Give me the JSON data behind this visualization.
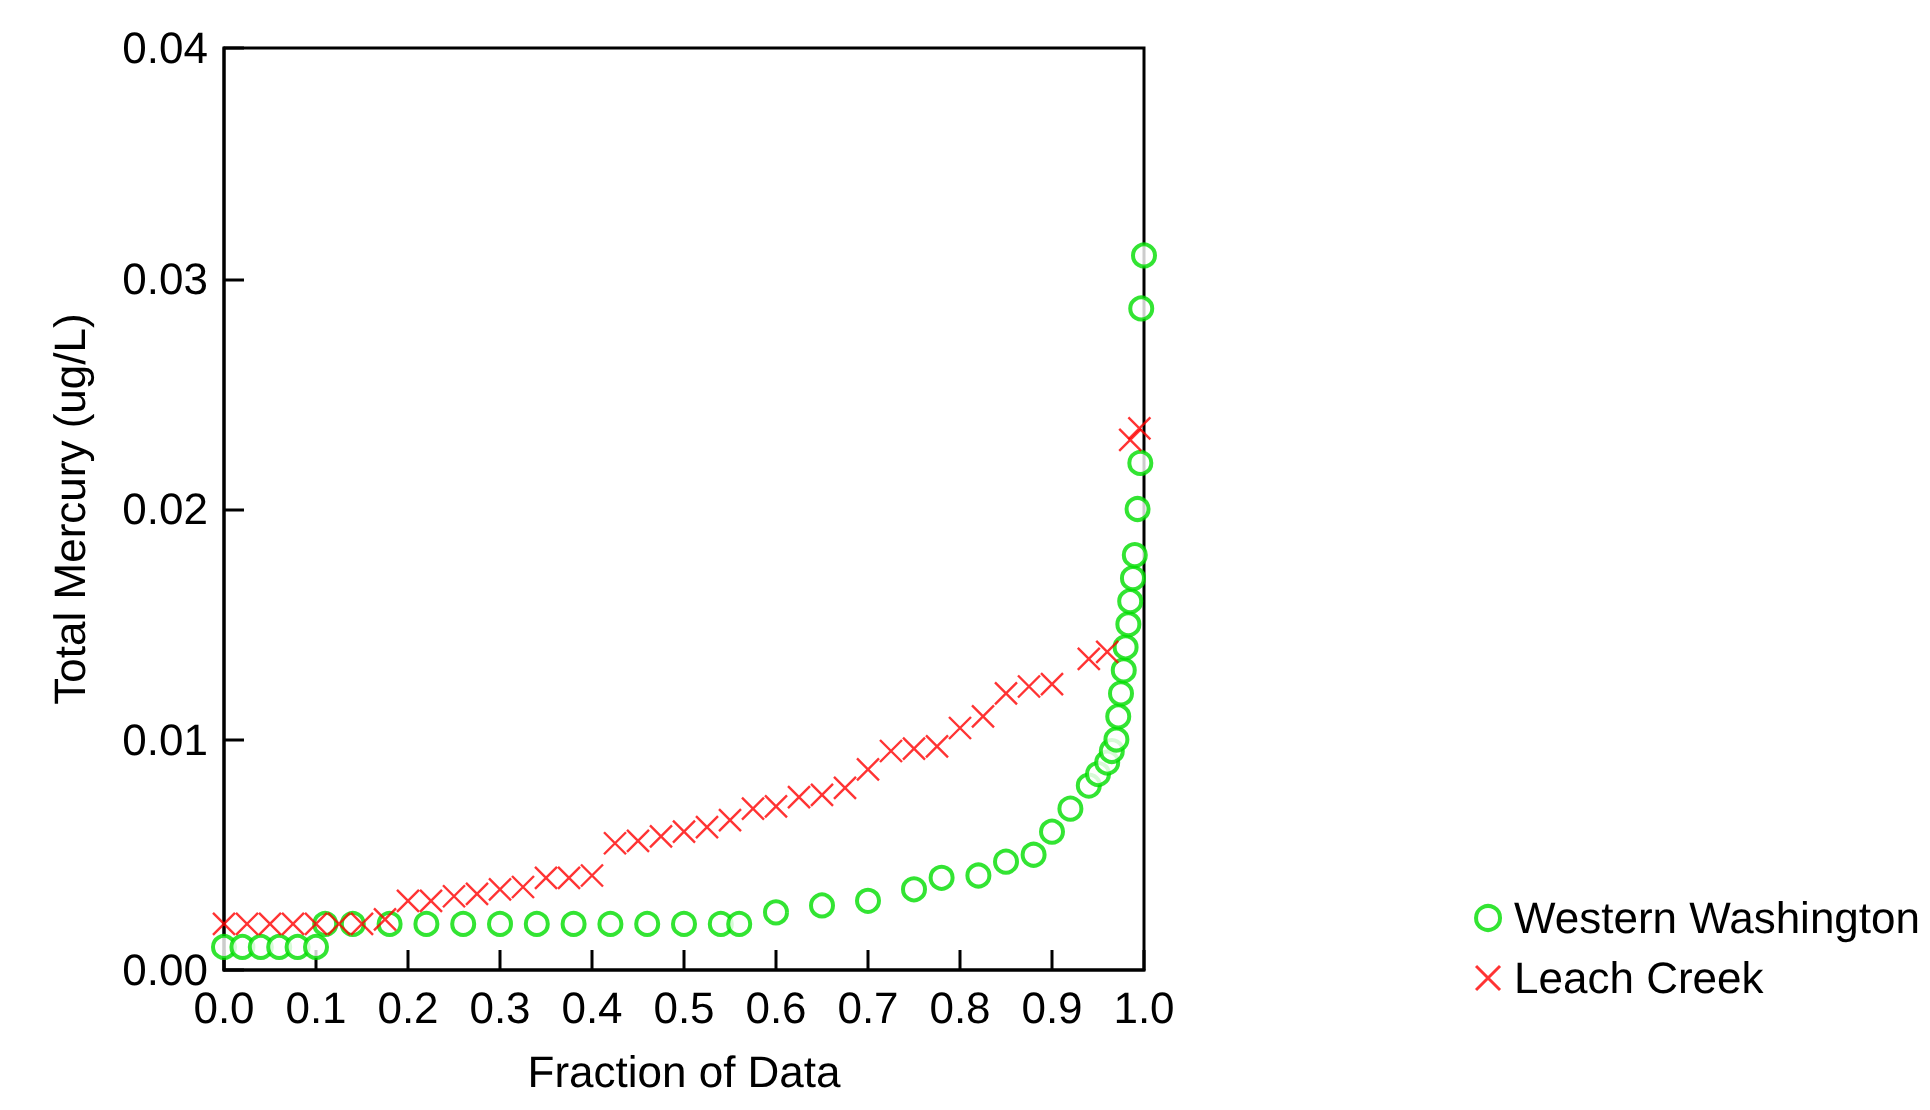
{
  "chart_data": {
    "type": "scatter",
    "xlabel": "Fraction of Data",
    "ylabel": "Total Mercury (ug/L)",
    "xlim": [
      0,
      1
    ],
    "xticks": [
      {
        "value": 0,
        "label": "0.0"
      },
      {
        "value": 0.1,
        "label": "0.1"
      },
      {
        "value": 0.2,
        "label": "0.2"
      },
      {
        "value": 0.3,
        "label": "0.3"
      },
      {
        "value": 0.4,
        "label": "0.4"
      },
      {
        "value": 0.5,
        "label": "0.5"
      },
      {
        "value": 0.6,
        "label": "0.6"
      },
      {
        "value": 0.7,
        "label": "0.7"
      },
      {
        "value": 0.8,
        "label": "0.8"
      },
      {
        "value": 0.9,
        "label": "0.9"
      },
      {
        "value": 1,
        "label": "1.0"
      }
    ],
    "ylim": [
      0,
      0.04
    ],
    "yticks": [
      {
        "value": 0,
        "label": "0.00"
      },
      {
        "value": 0.01,
        "label": "0.01"
      },
      {
        "value": 0.02,
        "label": "0.02"
      },
      {
        "value": 0.03,
        "label": "0.03"
      },
      {
        "value": 0.04,
        "label": "0.04"
      }
    ],
    "grid": false,
    "legend": "bottom right",
    "series": [
      {
        "name": "Western Washington",
        "color": "#00dd00",
        "marker": "circle",
        "x": [
          0,
          0.02,
          0.04,
          0.06,
          0.08,
          0.1,
          0.11,
          0.14,
          0.18,
          0.22,
          0.26,
          0.3,
          0.34,
          0.38,
          0.42,
          0.46,
          0.5,
          0.54,
          0.56,
          0.6,
          0.65,
          0.7,
          0.75,
          0.78,
          0.82,
          0.85,
          0.88,
          0.9,
          0.92,
          0.94,
          0.95,
          0.96,
          0.965,
          0.97,
          0.972,
          0.975,
          0.978,
          0.98,
          0.983,
          0.985,
          0.988,
          0.99,
          0.993,
          0.996,
          0.997,
          1.0
        ],
        "values": [
          0.001,
          0.001,
          0.001,
          0.001,
          0.001,
          0.001,
          0.002,
          0.002,
          0.002,
          0.002,
          0.002,
          0.002,
          0.002,
          0.002,
          0.002,
          0.002,
          0.002,
          0.002,
          0.002,
          0.0025,
          0.0028,
          0.003,
          0.0035,
          0.004,
          0.0041,
          0.0047,
          0.005,
          0.006,
          0.007,
          0.008,
          0.0085,
          0.009,
          0.0095,
          0.01,
          0.011,
          0.012,
          0.013,
          0.014,
          0.015,
          0.016,
          0.017,
          0.018,
          0.02,
          0.022,
          0.0287,
          0.031
        ]
      },
      {
        "name": "Leach Creek",
        "color": "#ff0000",
        "marker": "cross",
        "x": [
          0,
          0.025,
          0.05,
          0.075,
          0.1,
          0.125,
          0.15,
          0.175,
          0.2,
          0.225,
          0.25,
          0.275,
          0.3,
          0.325,
          0.35,
          0.375,
          0.4,
          0.425,
          0.45,
          0.475,
          0.5,
          0.525,
          0.55,
          0.575,
          0.6,
          0.625,
          0.65,
          0.675,
          0.7,
          0.725,
          0.75,
          0.775,
          0.8,
          0.825,
          0.85,
          0.875,
          0.9,
          0.94,
          0.96,
          0.985,
          0.995
        ],
        "values": [
          0.002,
          0.002,
          0.002,
          0.002,
          0.002,
          0.002,
          0.002,
          0.0022,
          0.003,
          0.003,
          0.0032,
          0.0033,
          0.0035,
          0.0036,
          0.004,
          0.004,
          0.0041,
          0.0055,
          0.0056,
          0.0058,
          0.006,
          0.0062,
          0.0065,
          0.007,
          0.0071,
          0.0075,
          0.0076,
          0.0079,
          0.0087,
          0.0095,
          0.0096,
          0.0097,
          0.0105,
          0.011,
          0.012,
          0.0123,
          0.0124,
          0.0135,
          0.0138,
          0.023,
          0.0235
        ]
      }
    ]
  }
}
